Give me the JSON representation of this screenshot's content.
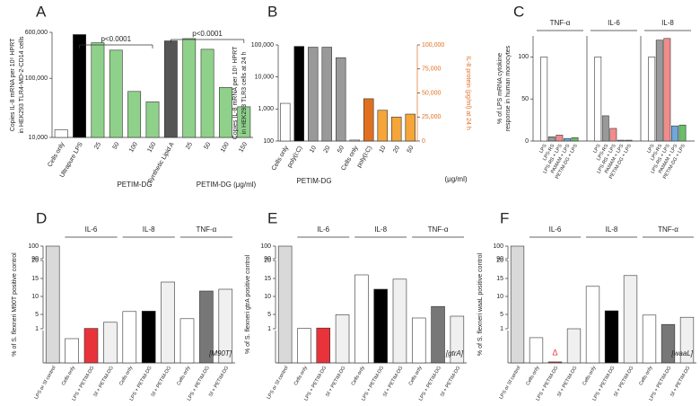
{
  "chart_data": [
    {
      "type": "bar",
      "panel": "A",
      "y_label": [
        "Copies IL-8 mRNA per 10⁵ HPRT",
        "in HEK293 TLR4-MD-2-CD14 cells"
      ],
      "log_y": true,
      "ylim": [
        10000,
        600000
      ],
      "yticks": [
        {
          "value": 10000,
          "label": "10,000"
        },
        {
          "value": 100000,
          "label": "100,000"
        },
        {
          "value": 600000,
          "label": "600,000"
        }
      ],
      "categories": [
        "Cells only",
        "Ultrapure LPS",
        "25",
        "50",
        "100",
        "150",
        "Synthetic Lipid A",
        "25",
        "50",
        "100",
        "150"
      ],
      "values": [
        13500,
        550000,
        400000,
        300000,
        60000,
        40000,
        430000,
        470000,
        310000,
        70000,
        33000
      ],
      "colors": [
        "#ffffff",
        "#000000",
        "#8fd18a",
        "#8fd18a",
        "#8fd18a",
        "#8fd18a",
        "#555555",
        "#8fd18a",
        "#8fd18a",
        "#8fd18a",
        "#8fd18a"
      ],
      "annotations": [
        "p<0.0001",
        "p<0.0001"
      ],
      "captions": [
        "PETIM-DG",
        "PETIM-DG (μg/ml)"
      ]
    },
    {
      "type": "bar",
      "panel": "B",
      "y_label": [
        "Copies IL-8 mRNA per 10⁵ HPRT",
        "in HEK293 TLR3 cells at 24 h"
      ],
      "y2_label": [
        "IL-8 protein (pg/ml) at 24 h"
      ],
      "y2_color": "#e07020",
      "log_y": true,
      "ylim": [
        100,
        100000
      ],
      "yticks": [
        100,
        {
          "value": 1000,
          "label": "1,000"
        },
        {
          "value": 10000,
          "label": "10,000"
        },
        {
          "value": 100000,
          "label": "100,000"
        }
      ],
      "y2lim": [
        0,
        100000
      ],
      "y2ticks": [
        0,
        {
          "value": 25000,
          "label": "25,000"
        },
        {
          "value": 50000,
          "label": "50,000"
        },
        {
          "value": 75000,
          "label": "75,000"
        },
        {
          "value": 100000,
          "label": "100,000"
        }
      ],
      "categories": [
        "Cells only",
        "poly(I:C)",
        "10",
        "20",
        "50",
        "Cells only",
        "poly(I:C)",
        "10",
        "20",
        "50"
      ],
      "series": [
        {
          "values": [
            1500,
            90000,
            85000,
            85000,
            40000,
            null,
            null,
            null,
            null,
            null
          ],
          "colors": [
            "#ffffff",
            "#000000",
            "#999999",
            "#999999",
            "#999999",
            null,
            null,
            null,
            null,
            null
          ]
        },
        {
          "axis": "y2",
          "values": [
            null,
            null,
            null,
            null,
            null,
            1000,
            44000,
            32000,
            25000,
            28000
          ],
          "colors": [
            null,
            null,
            null,
            null,
            null,
            "#fbe3cf",
            "#e07020",
            "#f5a53a",
            "#f5a53a",
            "#f5a53a"
          ]
        }
      ],
      "captions": [
        "PETIM-DG",
        "(μg/ml)"
      ]
    },
    {
      "type": "grouped_bar",
      "panel": "C",
      "y_label": [
        "% of LPS mRNA cytokine",
        "response in human monocytes"
      ],
      "ylim": [
        0,
        125
      ],
      "yticks": [
        0,
        50,
        100
      ],
      "categories": [
        "TNF-α",
        "IL-6",
        "IL-8"
      ],
      "series": [
        {
          "name": "LPS",
          "color": "#ffffff",
          "values": [
            100,
            100,
            100
          ]
        },
        {
          "name": "LPS-RS",
          "color": "#999999",
          "values": [
            5,
            30,
            120
          ]
        },
        {
          "name": "LPS-RS + LPS",
          "color": "#f28b8b",
          "values": [
            7,
            15,
            122
          ]
        },
        {
          "name": "PAMAM + LPS",
          "color": "#6fa8dc",
          "values": [
            3,
            1,
            18
          ]
        },
        {
          "name": "PETIM-DG + LPS",
          "color": "#6abf69",
          "values": [
            4,
            1,
            19
          ]
        }
      ]
    },
    {
      "type": "bar",
      "panel": "D",
      "y_label": [
        "% of S. flexneri M90T positive control"
      ],
      "ylim": [
        0,
        100
      ],
      "axis_segments": [
        [
          0,
          1
        ],
        [
          1,
          20
        ],
        [
          90,
          100
        ]
      ],
      "yticks": [
        1,
        5,
        10,
        15,
        20,
        90,
        100
      ],
      "group_labels": [
        "IL-6",
        "IL-8",
        "TNF-α"
      ],
      "categories": [
        "LPS or Sf control",
        "Cells only",
        "LPS + PETIM-DG",
        "Sf + PETIM-DG",
        "Cells only",
        "LPS + PETIM-DG",
        "Sf + PETIM-DG",
        "Cells only",
        "LPS + PETIM-DG",
        "Sf + PETIM-DG"
      ],
      "values": [
        100,
        0.75,
        1.1,
        2.8,
        5.8,
        5.9,
        14,
        3.8,
        11.5,
        12
      ],
      "colors": [
        "#d9d9d9",
        "#ffffff",
        "#e8333a",
        "#f0f0f0",
        "#ffffff",
        "#000000",
        "#f0f0f0",
        "#ffffff",
        "#777777",
        "#f0f0f0"
      ],
      "strain_label": "[M90T]"
    },
    {
      "type": "bar",
      "panel": "E",
      "y_label": [
        "% of S. flexneri gtrA positive control"
      ],
      "ylim": [
        0,
        100
      ],
      "axis_segments": [
        [
          0,
          1
        ],
        [
          1,
          20
        ],
        [
          90,
          100
        ]
      ],
      "yticks": [
        1,
        5,
        10,
        15,
        20,
        90,
        100
      ],
      "group_labels": [
        "IL-6",
        "IL-8",
        "TNF-α"
      ],
      "categories": [
        "LPS or Sf control",
        "Cells only",
        "LPS + PETIM-DG",
        "Sf + PETIM-DG",
        "Cells only",
        "LPS + PETIM-DG",
        "Sf + PETIM-DG",
        "Cells only",
        "LPS + PETIM-DG",
        "Sf + PETIM-DG"
      ],
      "values": [
        100,
        1.1,
        1.2,
        4.9,
        16,
        12,
        14.8,
        4,
        7.2,
        4.5
      ],
      "colors": [
        "#d9d9d9",
        "#ffffff",
        "#e8333a",
        "#f0f0f0",
        "#ffffff",
        "#000000",
        "#f0f0f0",
        "#ffffff",
        "#777777",
        "#f0f0f0"
      ],
      "strain_label": "[gtrA]"
    },
    {
      "type": "bar",
      "panel": "F",
      "y_label": [
        "% of S. flexneri waaL positive control"
      ],
      "ylim": [
        0,
        100
      ],
      "axis_segments": [
        [
          0,
          1
        ],
        [
          1,
          20
        ],
        [
          90,
          100
        ]
      ],
      "yticks": [
        1,
        5,
        10,
        15,
        20,
        90,
        100
      ],
      "group_labels": [
        "IL-6",
        "IL-8",
        "TNF-α"
      ],
      "categories": [
        "LPS or Sf control",
        "Cells only",
        "LPS + PETIM-DG",
        "Sf + PETIM-DG",
        "Cells only",
        "LPS + PETIM-DG",
        "Sf + PETIM-DG",
        "Cells only",
        "LPS + PETIM-DG",
        "Sf + PETIM-DG"
      ],
      "values": [
        100,
        0.78,
        0.03,
        1.0,
        12.8,
        6,
        15.8,
        4.8,
        2.2,
        4.2
      ],
      "colors": [
        "#d9d9d9",
        "#ffffff",
        "#e8333a",
        "#f0f0f0",
        "#ffffff",
        "#000000",
        "#f0f0f0",
        "#ffffff",
        "#777777",
        "#f0f0f0"
      ],
      "strain_label": "[waaL]",
      "marker": "Δ"
    }
  ]
}
